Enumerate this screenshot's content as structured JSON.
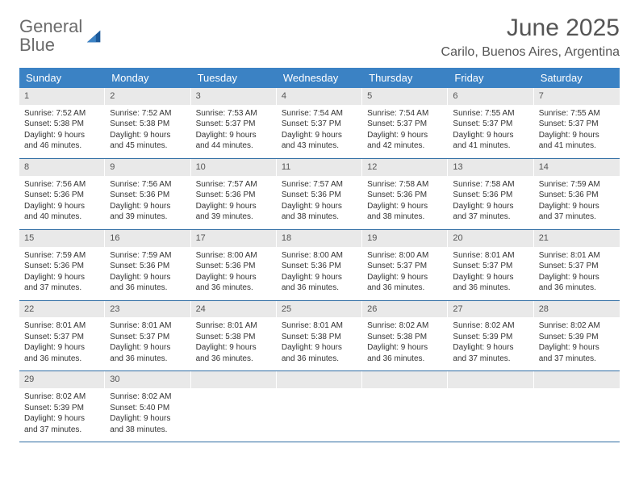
{
  "brand": {
    "name_part1": "General",
    "name_part2": "Blue",
    "gray_color": "#6b6b6b",
    "blue_color": "#2f7bbf",
    "mark_color_dark": "#1d5a9a",
    "mark_color_light": "#3b82c4"
  },
  "header": {
    "title": "June 2025",
    "location": "Carilo, Buenos Aires, Argentina"
  },
  "colors": {
    "header_bg": "#3b82c4",
    "header_text": "#ffffff",
    "cell_num_bg": "#e9e9e9",
    "week_border": "#2f6ca3",
    "body_text": "#333333"
  },
  "day_names": [
    "Sunday",
    "Monday",
    "Tuesday",
    "Wednesday",
    "Thursday",
    "Friday",
    "Saturday"
  ],
  "weeks": [
    [
      {
        "n": "1",
        "sr": "Sunrise: 7:52 AM",
        "ss": "Sunset: 5:38 PM",
        "dl": "Daylight: 9 hours and 46 minutes."
      },
      {
        "n": "2",
        "sr": "Sunrise: 7:52 AM",
        "ss": "Sunset: 5:38 PM",
        "dl": "Daylight: 9 hours and 45 minutes."
      },
      {
        "n": "3",
        "sr": "Sunrise: 7:53 AM",
        "ss": "Sunset: 5:37 PM",
        "dl": "Daylight: 9 hours and 44 minutes."
      },
      {
        "n": "4",
        "sr": "Sunrise: 7:54 AM",
        "ss": "Sunset: 5:37 PM",
        "dl": "Daylight: 9 hours and 43 minutes."
      },
      {
        "n": "5",
        "sr": "Sunrise: 7:54 AM",
        "ss": "Sunset: 5:37 PM",
        "dl": "Daylight: 9 hours and 42 minutes."
      },
      {
        "n": "6",
        "sr": "Sunrise: 7:55 AM",
        "ss": "Sunset: 5:37 PM",
        "dl": "Daylight: 9 hours and 41 minutes."
      },
      {
        "n": "7",
        "sr": "Sunrise: 7:55 AM",
        "ss": "Sunset: 5:37 PM",
        "dl": "Daylight: 9 hours and 41 minutes."
      }
    ],
    [
      {
        "n": "8",
        "sr": "Sunrise: 7:56 AM",
        "ss": "Sunset: 5:36 PM",
        "dl": "Daylight: 9 hours and 40 minutes."
      },
      {
        "n": "9",
        "sr": "Sunrise: 7:56 AM",
        "ss": "Sunset: 5:36 PM",
        "dl": "Daylight: 9 hours and 39 minutes."
      },
      {
        "n": "10",
        "sr": "Sunrise: 7:57 AM",
        "ss": "Sunset: 5:36 PM",
        "dl": "Daylight: 9 hours and 39 minutes."
      },
      {
        "n": "11",
        "sr": "Sunrise: 7:57 AM",
        "ss": "Sunset: 5:36 PM",
        "dl": "Daylight: 9 hours and 38 minutes."
      },
      {
        "n": "12",
        "sr": "Sunrise: 7:58 AM",
        "ss": "Sunset: 5:36 PM",
        "dl": "Daylight: 9 hours and 38 minutes."
      },
      {
        "n": "13",
        "sr": "Sunrise: 7:58 AM",
        "ss": "Sunset: 5:36 PM",
        "dl": "Daylight: 9 hours and 37 minutes."
      },
      {
        "n": "14",
        "sr": "Sunrise: 7:59 AM",
        "ss": "Sunset: 5:36 PM",
        "dl": "Daylight: 9 hours and 37 minutes."
      }
    ],
    [
      {
        "n": "15",
        "sr": "Sunrise: 7:59 AM",
        "ss": "Sunset: 5:36 PM",
        "dl": "Daylight: 9 hours and 37 minutes."
      },
      {
        "n": "16",
        "sr": "Sunrise: 7:59 AM",
        "ss": "Sunset: 5:36 PM",
        "dl": "Daylight: 9 hours and 36 minutes."
      },
      {
        "n": "17",
        "sr": "Sunrise: 8:00 AM",
        "ss": "Sunset: 5:36 PM",
        "dl": "Daylight: 9 hours and 36 minutes."
      },
      {
        "n": "18",
        "sr": "Sunrise: 8:00 AM",
        "ss": "Sunset: 5:36 PM",
        "dl": "Daylight: 9 hours and 36 minutes."
      },
      {
        "n": "19",
        "sr": "Sunrise: 8:00 AM",
        "ss": "Sunset: 5:37 PM",
        "dl": "Daylight: 9 hours and 36 minutes."
      },
      {
        "n": "20",
        "sr": "Sunrise: 8:01 AM",
        "ss": "Sunset: 5:37 PM",
        "dl": "Daylight: 9 hours and 36 minutes."
      },
      {
        "n": "21",
        "sr": "Sunrise: 8:01 AM",
        "ss": "Sunset: 5:37 PM",
        "dl": "Daylight: 9 hours and 36 minutes."
      }
    ],
    [
      {
        "n": "22",
        "sr": "Sunrise: 8:01 AM",
        "ss": "Sunset: 5:37 PM",
        "dl": "Daylight: 9 hours and 36 minutes."
      },
      {
        "n": "23",
        "sr": "Sunrise: 8:01 AM",
        "ss": "Sunset: 5:37 PM",
        "dl": "Daylight: 9 hours and 36 minutes."
      },
      {
        "n": "24",
        "sr": "Sunrise: 8:01 AM",
        "ss": "Sunset: 5:38 PM",
        "dl": "Daylight: 9 hours and 36 minutes."
      },
      {
        "n": "25",
        "sr": "Sunrise: 8:01 AM",
        "ss": "Sunset: 5:38 PM",
        "dl": "Daylight: 9 hours and 36 minutes."
      },
      {
        "n": "26",
        "sr": "Sunrise: 8:02 AM",
        "ss": "Sunset: 5:38 PM",
        "dl": "Daylight: 9 hours and 36 minutes."
      },
      {
        "n": "27",
        "sr": "Sunrise: 8:02 AM",
        "ss": "Sunset: 5:39 PM",
        "dl": "Daylight: 9 hours and 37 minutes."
      },
      {
        "n": "28",
        "sr": "Sunrise: 8:02 AM",
        "ss": "Sunset: 5:39 PM",
        "dl": "Daylight: 9 hours and 37 minutes."
      }
    ],
    [
      {
        "n": "29",
        "sr": "Sunrise: 8:02 AM",
        "ss": "Sunset: 5:39 PM",
        "dl": "Daylight: 9 hours and 37 minutes."
      },
      {
        "n": "30",
        "sr": "Sunrise: 8:02 AM",
        "ss": "Sunset: 5:40 PM",
        "dl": "Daylight: 9 hours and 38 minutes."
      },
      {
        "n": "",
        "sr": "",
        "ss": "",
        "dl": ""
      },
      {
        "n": "",
        "sr": "",
        "ss": "",
        "dl": ""
      },
      {
        "n": "",
        "sr": "",
        "ss": "",
        "dl": ""
      },
      {
        "n": "",
        "sr": "",
        "ss": "",
        "dl": ""
      },
      {
        "n": "",
        "sr": "",
        "ss": "",
        "dl": ""
      }
    ]
  ]
}
